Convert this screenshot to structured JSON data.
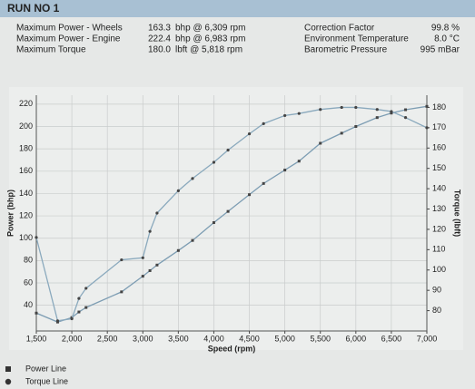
{
  "header": {
    "title": "RUN NO 1",
    "stats": [
      {
        "label": "Maximum Power - Wheels",
        "value": "163.3",
        "unit": "bhp @ 6,309 rpm"
      },
      {
        "label": "Maximum Power - Engine",
        "value": "222.4",
        "unit": "bhp @ 6,983 rpm"
      },
      {
        "label": "Maximum Torque",
        "value": "180.0",
        "unit": "lbft @ 5,818 rpm"
      }
    ],
    "conditions": [
      {
        "label": "Correction Factor",
        "value": "99.8 %"
      },
      {
        "label": "Environment Temperature",
        "value": "8.0 °C"
      },
      {
        "label": "Barometric Pressure",
        "value": "995 mBar"
      }
    ]
  },
  "chart_data": {
    "type": "line",
    "x_label": "Speed (rpm)",
    "y_label": "Power (bhp)",
    "y2_label": "Torque (lbft)",
    "x": [
      1500,
      1800,
      2000,
      2100,
      2200,
      2700,
      3000,
      3100,
      3200,
      3500,
      3700,
      4000,
      4200,
      4500,
      4700,
      5000,
      5200,
      5500,
      5800,
      6000,
      6300,
      6500,
      6700,
      7000
    ],
    "series": [
      {
        "name": "Power Line",
        "color": "#7d9db3",
        "marker": "square",
        "values": [
          33,
          25,
          29,
          34,
          38,
          52,
          66,
          71,
          76,
          89,
          98,
          114,
          124,
          139,
          149,
          161,
          169,
          185,
          194,
          200,
          208,
          212,
          215,
          218
        ]
      },
      {
        "name": "Torque Line",
        "color": "#8aa9bd",
        "marker": "circle",
        "axis": "y2",
        "values": [
          116,
          75,
          76,
          86,
          91,
          105,
          106,
          119,
          128,
          139,
          145,
          153,
          159,
          167,
          172,
          176,
          177,
          179,
          180,
          180,
          179,
          178,
          175,
          170
        ]
      }
    ],
    "xlim": [
      1500,
      7000
    ],
    "xticks": [
      {
        "value": 1500,
        "label": "1,500"
      },
      {
        "value": 2000,
        "label": "2,000"
      },
      {
        "value": 2500,
        "label": "2,500"
      },
      {
        "value": 3000,
        "label": "3,000"
      },
      {
        "value": 3500,
        "label": "3,500"
      },
      {
        "value": 4000,
        "label": "4,000"
      },
      {
        "value": 4500,
        "label": "4,500"
      },
      {
        "value": 5000,
        "label": "5,000"
      },
      {
        "value": 5500,
        "label": "5,500"
      },
      {
        "value": 6000,
        "label": "6,000"
      },
      {
        "value": 6500,
        "label": "6,500"
      },
      {
        "value": 7000,
        "label": "7,000"
      }
    ],
    "ylim": [
      17,
      228
    ],
    "yticks": [
      40,
      60,
      80,
      100,
      120,
      140,
      160,
      180,
      200,
      220
    ],
    "y2lim": [
      70,
      186
    ],
    "y2ticks": [
      80,
      90,
      100,
      110,
      120,
      130,
      140,
      150,
      160,
      170,
      180
    ],
    "grid": true
  }
}
